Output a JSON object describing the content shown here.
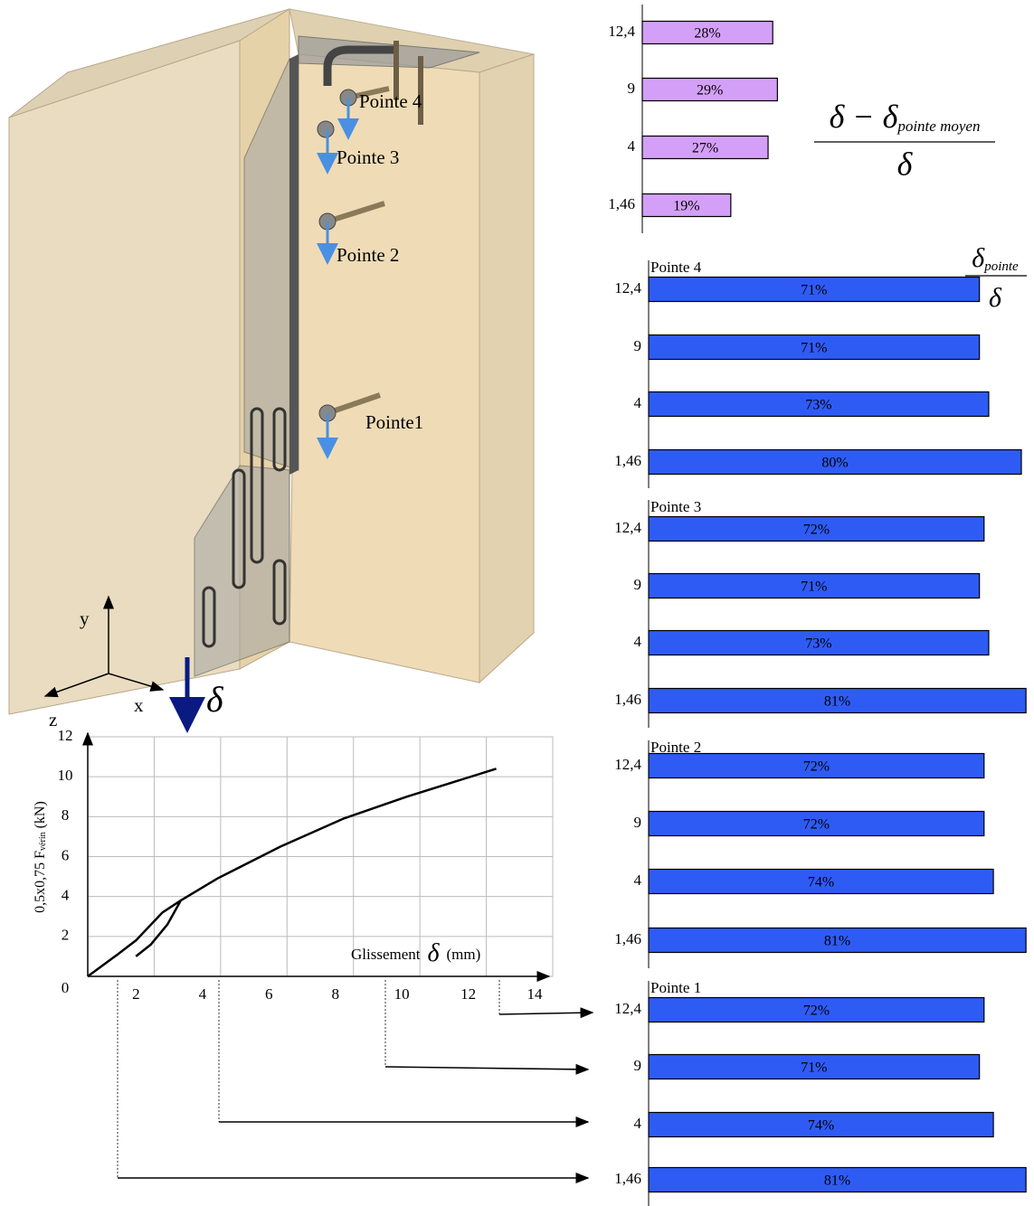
{
  "illustration": {
    "labels": [
      "Pointe 4",
      "Pointe 3",
      "Pointe 2",
      "Pointe1"
    ],
    "axes": [
      "y",
      "x",
      "z"
    ],
    "delta": "δ"
  },
  "chart_data": [
    {
      "type": "line",
      "ylabel": "0,5x0,75 F",
      "ylabel_sub": "vérin",
      "ylabel_unit": "(kN)",
      "xlabel": "Glissement",
      "xlabel_symbol": "δ",
      "xlabel_unit": "(mm)",
      "x": [
        0,
        0.9,
        1.45,
        1.85,
        2.25,
        2.8,
        3.9,
        5.8,
        7.7,
        9.6,
        12.3,
        null,
        1.45,
        1.9,
        2.4,
        2.8
      ],
      "values": [
        0,
        1.1,
        1.8,
        2.5,
        3.2,
        3.8,
        4.9,
        6.5,
        7.9,
        9.0,
        10.4,
        null,
        1.0,
        1.6,
        2.6,
        3.8
      ],
      "color": "#000000",
      "xlim": [
        0,
        14
      ],
      "ylim": [
        0,
        12
      ],
      "xticks": [
        2,
        4,
        6,
        8,
        10,
        12,
        14
      ],
      "yticks": [
        0,
        2,
        4,
        6,
        8,
        10,
        12
      ],
      "grid": true
    },
    {
      "type": "bar",
      "orientation": "horizontal",
      "categories": [
        "12,4",
        "9",
        "4",
        "1,46"
      ],
      "values": [
        28,
        29,
        27,
        19
      ],
      "value_labels": [
        "28%",
        "29%",
        "27%",
        "19%"
      ],
      "color": "#d4a0f7",
      "formula": {
        "numerator": "δ − δ",
        "subscript": "pointe moyen",
        "denominator": "δ"
      }
    },
    {
      "type": "bar",
      "orientation": "horizontal",
      "title": "Pointe 4",
      "categories": [
        "12,4",
        "9",
        "4",
        "1,46"
      ],
      "values": [
        71,
        71,
        73,
        80
      ],
      "value_labels": [
        "71%",
        "71%",
        "73%",
        "80%"
      ],
      "color": "#2f5bf5",
      "formula": {
        "numerator": "δ",
        "subscript": "pointe",
        "denominator": "δ"
      }
    },
    {
      "type": "bar",
      "orientation": "horizontal",
      "title": "Pointe 3",
      "categories": [
        "12,4",
        "9",
        "4",
        "1,46"
      ],
      "values": [
        72,
        71,
        73,
        81
      ],
      "value_labels": [
        "72%",
        "71%",
        "73%",
        "81%"
      ],
      "color": "#2f5bf5"
    },
    {
      "type": "bar",
      "orientation": "horizontal",
      "title": "Pointe 2",
      "categories": [
        "12,4",
        "9",
        "4",
        "1,46"
      ],
      "values": [
        72,
        72,
        74,
        81
      ],
      "value_labels": [
        "72%",
        "72%",
        "74%",
        "81%"
      ],
      "color": "#2f5bf5"
    },
    {
      "type": "bar",
      "orientation": "horizontal",
      "title": "Pointe 1",
      "categories": [
        "12,4",
        "9",
        "4",
        "1,46"
      ],
      "values": [
        72,
        71,
        74,
        81
      ],
      "value_labels": [
        "72%",
        "71%",
        "74%",
        "81%"
      ],
      "color": "#2f5bf5"
    }
  ]
}
